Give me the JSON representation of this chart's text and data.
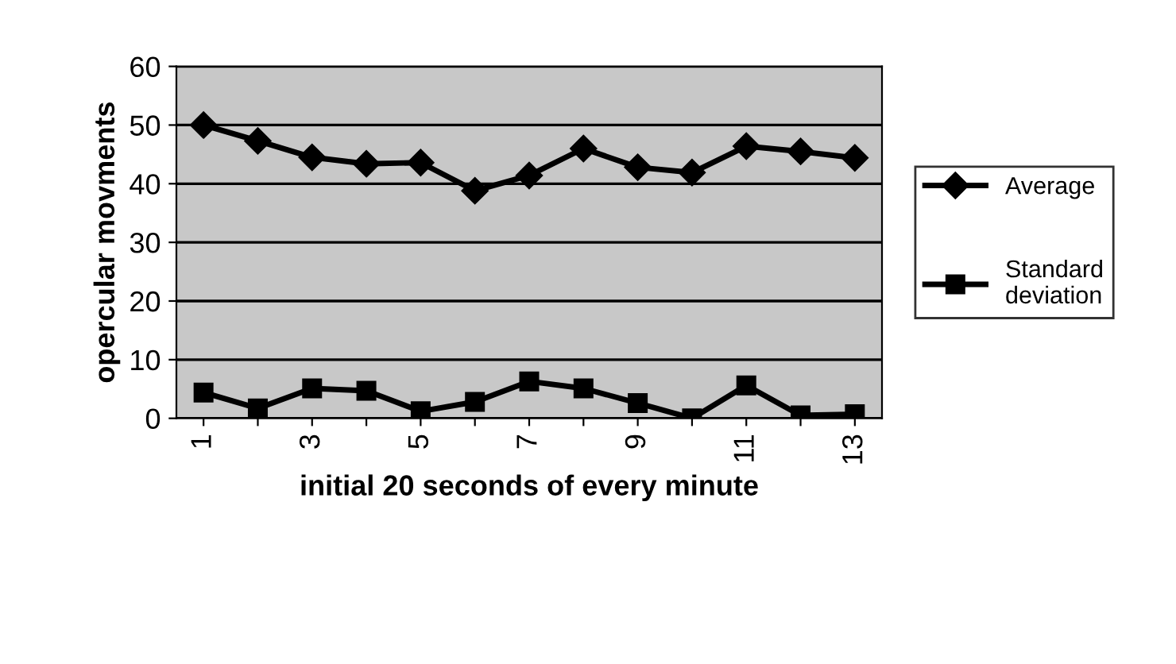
{
  "chart_data": {
    "type": "line",
    "xlabel": "initial 20 seconds of every minute",
    "ylabel": "opercular movments",
    "categories": [
      "1",
      null,
      "3",
      null,
      "5",
      null,
      "7",
      null,
      "9",
      null,
      "11",
      null,
      "13"
    ],
    "series": [
      {
        "name": "Average",
        "color": "#000000",
        "marker": "diamond",
        "values": [
          50,
          47.3,
          44.5,
          43.4,
          43.6,
          38.8,
          41.4,
          46,
          42.8,
          41.9,
          46.4,
          45.5,
          44.4
        ]
      },
      {
        "name": "Standard deviation",
        "color": "#000000",
        "marker": "square",
        "values": [
          4.4,
          1.7,
          5.1,
          4.7,
          1.2,
          2.8,
          6.3,
          5.1,
          2.6,
          0,
          5.6,
          0.5,
          0.7
        ]
      }
    ],
    "ylim": [
      0,
      60
    ],
    "yticks": [
      0,
      10,
      20,
      30,
      40,
      50,
      60
    ],
    "grid": "y",
    "legend": "right"
  }
}
